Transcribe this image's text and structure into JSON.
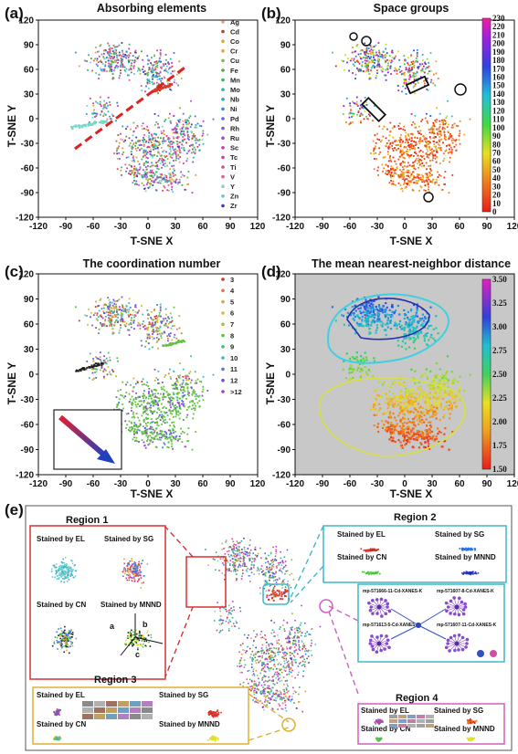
{
  "chart_data": [
    {
      "panel": "(a)",
      "type": "scatter",
      "title": "Absorbing elements",
      "xlabel": "T-SNE X",
      "ylabel": "T-SNE Y",
      "xlim": [
        -120,
        120
      ],
      "ylim": [
        -120,
        120
      ],
      "xticks": [
        -120,
        -90,
        -60,
        -30,
        0,
        30,
        60,
        90,
        120
      ],
      "yticks": [
        -120,
        -90,
        -60,
        -30,
        0,
        30,
        60,
        90,
        120
      ],
      "legend_position": "right",
      "series": [
        {
          "name": "Ag",
          "color": "#e89a8a"
        },
        {
          "name": "Cd",
          "color": "#c83a2a"
        },
        {
          "name": "Co",
          "color": "#c8b03a"
        },
        {
          "name": "Cr",
          "color": "#e0a040"
        },
        {
          "name": "Cu",
          "color": "#8ab83a"
        },
        {
          "name": "Fe",
          "color": "#4aa83a"
        },
        {
          "name": "Mn",
          "color": "#3ab86a"
        },
        {
          "name": "Mo",
          "color": "#2ab8a0"
        },
        {
          "name": "Nb",
          "color": "#2aa8c8"
        },
        {
          "name": "Ni",
          "color": "#3a8ad8"
        },
        {
          "name": "Pd",
          "color": "#4a6ae0"
        },
        {
          "name": "Rh",
          "color": "#7a5ae0"
        },
        {
          "name": "Ru",
          "color": "#a04ad8"
        },
        {
          "name": "Sc",
          "color": "#c83ac8"
        },
        {
          "name": "Tc",
          "color": "#d83aa0"
        },
        {
          "name": "Ti",
          "color": "#e04a78"
        },
        {
          "name": "V",
          "color": "#e85a8a"
        },
        {
          "name": "Y",
          "color": "#7ad8c8"
        },
        {
          "name": "Zn",
          "color": "#58c8e0"
        },
        {
          "name": "Zr",
          "color": "#3a3ab8"
        }
      ]
    },
    {
      "panel": "(b)",
      "type": "scatter",
      "title": "Space groups",
      "xlabel": "T-SNE X",
      "ylabel": "T-SNE Y",
      "xlim": [
        -120,
        120
      ],
      "ylim": [
        -120,
        120
      ],
      "colorbar": {
        "min": 0,
        "max": 230,
        "ticks": [
          0,
          10,
          20,
          30,
          40,
          50,
          60,
          70,
          80,
          90,
          100,
          110,
          120,
          130,
          140,
          150,
          160,
          170,
          180,
          190,
          200,
          210,
          220,
          230
        ]
      }
    },
    {
      "panel": "(c)",
      "type": "scatter",
      "title": "The coordination number",
      "xlabel": "T-SNE X",
      "ylabel": "T-SNE Y",
      "xlim": [
        -120,
        120
      ],
      "ylim": [
        -120,
        120
      ],
      "legend_position": "right",
      "series": [
        {
          "name": "3",
          "color": "#c83a2a"
        },
        {
          "name": "4",
          "color": "#e07a40"
        },
        {
          "name": "5",
          "color": "#e0a040"
        },
        {
          "name": "6",
          "color": "#d0c040"
        },
        {
          "name": "7",
          "color": "#a0c040"
        },
        {
          "name": "8",
          "color": "#60c040"
        },
        {
          "name": "9",
          "color": "#40c080"
        },
        {
          "name": "10",
          "color": "#40b8c0"
        },
        {
          "name": "11",
          "color": "#4080d8"
        },
        {
          "name": "12",
          "color": "#6a50d8"
        },
        {
          "name": ">12",
          "color": "#a040c8"
        }
      ]
    },
    {
      "panel": "(d)",
      "type": "scatter",
      "title": "The mean nearest-neighbor distance",
      "xlabel": "T-SNE X",
      "ylabel": "T-SNE Y",
      "xlim": [
        -120,
        120
      ],
      "ylim": [
        -120,
        120
      ],
      "colorbar": {
        "min": 1.5,
        "max": 3.5,
        "ticks": [
          "1.50",
          "1.75",
          "2.00",
          "2.25",
          "2.50",
          "2.75",
          "3.00",
          "3.25",
          "3.50"
        ]
      }
    }
  ],
  "panel_e": {
    "label": "(e)",
    "regions": [
      {
        "title": "Region 1",
        "labels": [
          "Stained by EL",
          "Stained by SG",
          "Stained by CN",
          "Stained by MNND"
        ],
        "sub_labels": [
          "a",
          "b",
          "c"
        ]
      },
      {
        "title": "Region 2",
        "labels": [
          "Stained by EL",
          "Stained by SG",
          "Stained by CN",
          "Stained by MNND"
        ],
        "molecules": [
          "mp-571666-11-Cd-XANES-K",
          "mp-571607-8-Cd-XANES-K",
          "mp-571613-5-Cd-XANES-K",
          "mp-571607-11-Cd-XANES-K"
        ]
      },
      {
        "title": "Region 3",
        "labels": [
          "Stained by EL",
          "Stained by SG",
          "Stained by CN",
          "Stained by MNND"
        ]
      },
      {
        "title": "Region 4",
        "labels": [
          "Stained by EL",
          "Stained by SG",
          "Stained by CN",
          "Stained by MNND"
        ]
      }
    ]
  }
}
